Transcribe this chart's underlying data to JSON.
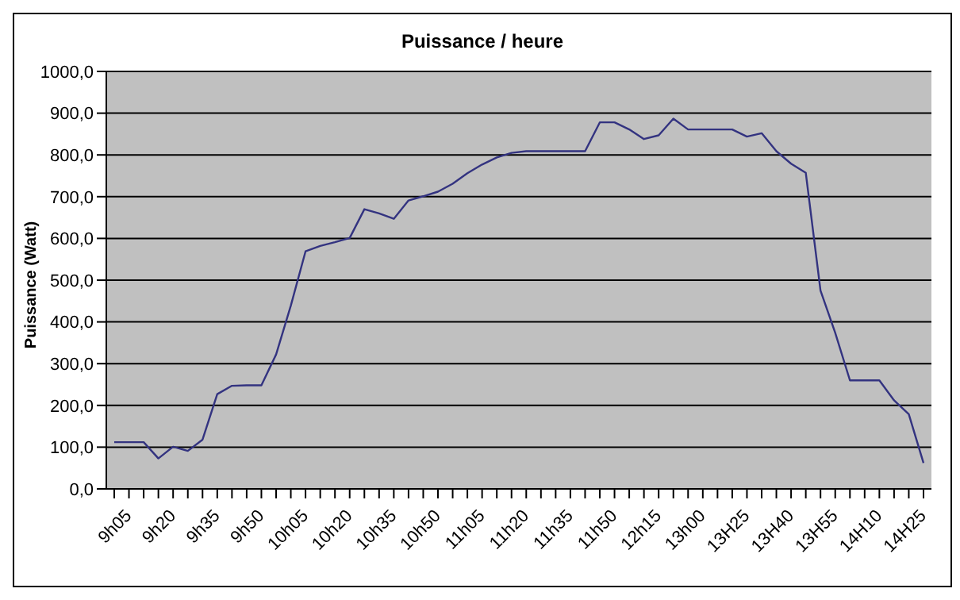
{
  "chart_data": {
    "type": "line",
    "title": "Puissance / heure",
    "ylabel": "Puissance (Watt)",
    "categories": [
      "9h05",
      null,
      null,
      "9h20",
      null,
      null,
      "9h35",
      null,
      null,
      "9h50",
      null,
      null,
      "10h05",
      null,
      null,
      "10h20",
      null,
      null,
      "10h35",
      null,
      null,
      "10h50",
      null,
      null,
      "11h05",
      null,
      null,
      "11h20",
      null,
      null,
      "11h35",
      null,
      null,
      "11h50",
      null,
      null,
      "12h15",
      null,
      null,
      "13h00",
      null,
      null,
      "13H25",
      null,
      null,
      "13H40",
      null,
      null,
      "13H55",
      null,
      null,
      "14H10",
      null,
      null,
      "14H25",
      null
    ],
    "series": [
      {
        "color": "#333380",
        "values": [
          112,
          112,
          112,
          73,
          101,
          91,
          118,
          227,
          247,
          248,
          248,
          322,
          439,
          569,
          582,
          591,
          601,
          670,
          660,
          647,
          691,
          701,
          712,
          731,
          756,
          777,
          794,
          805,
          809,
          809,
          809,
          809,
          809,
          878,
          878,
          861,
          838,
          847,
          887,
          861,
          861,
          861,
          861,
          844,
          852,
          809,
          779,
          757,
          475,
          374,
          260,
          260,
          260,
          212,
          179,
          62
        ]
      }
    ],
    "ylim": [
      0,
      1000
    ],
    "yticks": [
      {
        "value": 0,
        "label": "0,0"
      },
      {
        "value": 100,
        "label": "100,0"
      },
      {
        "value": 200,
        "label": "200,0"
      },
      {
        "value": 300,
        "label": "300,0"
      },
      {
        "value": 400,
        "label": "400,0"
      },
      {
        "value": 500,
        "label": "500,0"
      },
      {
        "value": 600,
        "label": "600,0"
      },
      {
        "value": 700,
        "label": "700,0"
      },
      {
        "value": 800,
        "label": "800,0"
      },
      {
        "value": 900,
        "label": "900,0"
      },
      {
        "value": 1000,
        "label": "1000,0"
      }
    ],
    "grid": "y",
    "legend": false,
    "marker": "none",
    "line_style": "solid"
  }
}
